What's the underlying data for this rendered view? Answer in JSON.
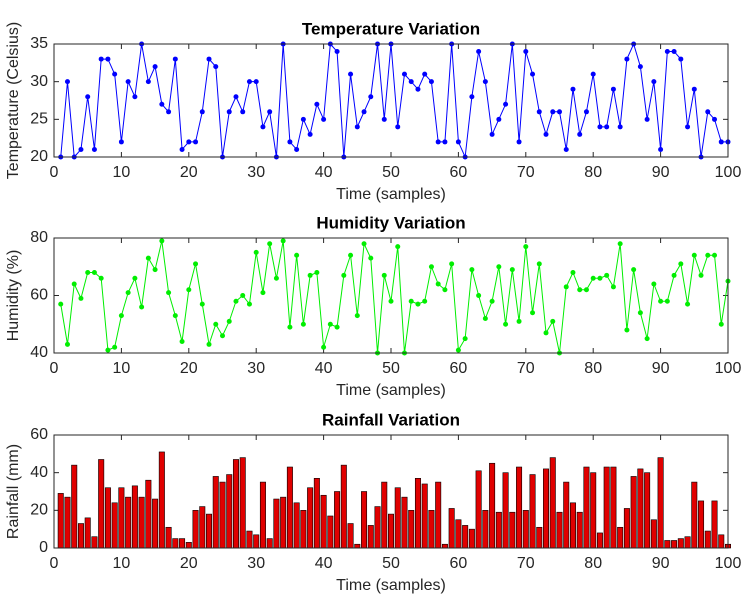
{
  "chart_data": [
    {
      "type": "line",
      "title": "Temperature Variation",
      "xlabel": "Time (samples)",
      "ylabel": "Temperature (Celsius)",
      "color": "#0000ff",
      "x": [
        1,
        2,
        3,
        4,
        5,
        6,
        7,
        8,
        9,
        10,
        11,
        12,
        13,
        14,
        15,
        16,
        17,
        18,
        19,
        20,
        21,
        22,
        23,
        24,
        25,
        26,
        27,
        28,
        29,
        30,
        31,
        32,
        33,
        34,
        35,
        36,
        37,
        38,
        39,
        40,
        41,
        42,
        43,
        44,
        45,
        46,
        47,
        48,
        49,
        50,
        51,
        52,
        53,
        54,
        55,
        56,
        57,
        58,
        59,
        60,
        61,
        62,
        63,
        64,
        65,
        66,
        67,
        68,
        69,
        70,
        71,
        72,
        73,
        74,
        75,
        76,
        77,
        78,
        79,
        80,
        81,
        82,
        83,
        84,
        85,
        86,
        87,
        88,
        89,
        90,
        91,
        92,
        93,
        94,
        95,
        96,
        97,
        98,
        99,
        100
      ],
      "values": [
        20,
        30,
        20,
        21,
        28,
        21,
        33,
        33,
        31,
        22,
        30,
        28,
        35,
        30,
        32,
        27,
        26,
        33,
        21,
        22,
        22,
        26,
        33,
        32,
        20,
        26,
        28,
        26,
        30,
        30,
        24,
        26,
        20,
        35,
        22,
        21,
        25,
        23,
        27,
        25,
        35,
        34,
        20,
        31,
        24,
        26,
        28,
        35,
        25,
        35,
        24,
        31,
        30,
        29,
        31,
        30,
        22,
        22,
        35,
        22,
        20,
        28,
        34,
        30,
        23,
        25,
        27,
        35,
        22,
        34,
        31,
        26,
        23,
        26,
        26,
        21,
        29,
        23,
        26,
        31,
        24,
        24,
        29,
        24,
        33,
        35,
        32,
        25,
        30,
        21,
        34,
        34,
        33,
        24,
        29,
        20,
        26,
        25,
        22,
        22
      ],
      "xlim": [
        0,
        100
      ],
      "xticks": [
        0,
        10,
        20,
        30,
        40,
        50,
        60,
        70,
        80,
        90,
        100
      ],
      "ylim": [
        20,
        35
      ],
      "yticks": [
        20,
        25,
        30,
        35
      ]
    },
    {
      "type": "line",
      "title": "Humidity Variation",
      "xlabel": "Time (samples)",
      "ylabel": "Humidity (%)",
      "color": "#00ee00",
      "x": [
        1,
        2,
        3,
        4,
        5,
        6,
        7,
        8,
        9,
        10,
        11,
        12,
        13,
        14,
        15,
        16,
        17,
        18,
        19,
        20,
        21,
        22,
        23,
        24,
        25,
        26,
        27,
        28,
        29,
        30,
        31,
        32,
        33,
        34,
        35,
        36,
        37,
        38,
        39,
        40,
        41,
        42,
        43,
        44,
        45,
        46,
        47,
        48,
        49,
        50,
        51,
        52,
        53,
        54,
        55,
        56,
        57,
        58,
        59,
        60,
        61,
        62,
        63,
        64,
        65,
        66,
        67,
        68,
        69,
        70,
        71,
        72,
        73,
        74,
        75,
        76,
        77,
        78,
        79,
        80,
        81,
        82,
        83,
        84,
        85,
        86,
        87,
        88,
        89,
        90,
        91,
        92,
        93,
        94,
        95,
        96,
        97,
        98,
        99,
        100
      ],
      "values": [
        57,
        43,
        64,
        59,
        68,
        68,
        66,
        41,
        42,
        53,
        61,
        66,
        56,
        73,
        69,
        79,
        61,
        53,
        44,
        62,
        71,
        57,
        43,
        50,
        46,
        51,
        58,
        60,
        57,
        75,
        61,
        78,
        66,
        79,
        49,
        74,
        50,
        67,
        68,
        42,
        50,
        49,
        67,
        74,
        53,
        78,
        73,
        40,
        67,
        58,
        77,
        40,
        58,
        57,
        58,
        70,
        64,
        62,
        71,
        41,
        45,
        69,
        60,
        52,
        58,
        70,
        50,
        69,
        51,
        77,
        54,
        71,
        47,
        51,
        40,
        63,
        68,
        62,
        62,
        66,
        66,
        67,
        63,
        78,
        48,
        69,
        54,
        45,
        64,
        58,
        58,
        67,
        71,
        57,
        74,
        67,
        74,
        74,
        50,
        65
      ],
      "xlim": [
        0,
        100
      ],
      "xticks": [
        0,
        10,
        20,
        30,
        40,
        50,
        60,
        70,
        80,
        90,
        100
      ],
      "ylim": [
        40,
        80
      ],
      "yticks": [
        40,
        60,
        80
      ]
    },
    {
      "type": "bar",
      "title": "Rainfall Variation",
      "xlabel": "Time (samples)",
      "ylabel": "Rainfall (mm)",
      "color": "#e00000",
      "x": [
        1,
        2,
        3,
        4,
        5,
        6,
        7,
        8,
        9,
        10,
        11,
        12,
        13,
        14,
        15,
        16,
        17,
        18,
        19,
        20,
        21,
        22,
        23,
        24,
        25,
        26,
        27,
        28,
        29,
        30,
        31,
        32,
        33,
        34,
        35,
        36,
        37,
        38,
        39,
        40,
        41,
        42,
        43,
        44,
        45,
        46,
        47,
        48,
        49,
        50,
        51,
        52,
        53,
        54,
        55,
        56,
        57,
        58,
        59,
        60,
        61,
        62,
        63,
        64,
        65,
        66,
        67,
        68,
        69,
        70,
        71,
        72,
        73,
        74,
        75,
        76,
        77,
        78,
        79,
        80,
        81,
        82,
        83,
        84,
        85,
        86,
        87,
        88,
        89,
        90,
        91,
        92,
        93,
        94,
        95,
        96,
        97,
        98,
        99,
        100
      ],
      "values": [
        29,
        27,
        44,
        13,
        16,
        6,
        47,
        32,
        24,
        32,
        27,
        33,
        27,
        36,
        26,
        51,
        11,
        5,
        5,
        3,
        20,
        22,
        18,
        38,
        35,
        39,
        47,
        48,
        9,
        7,
        35,
        5,
        26,
        27,
        43,
        24,
        20,
        32,
        37,
        28,
        17,
        30,
        44,
        13,
        2,
        30,
        12,
        22,
        35,
        18,
        32,
        27,
        20,
        37,
        34,
        20,
        35,
        2,
        21,
        15,
        12,
        10,
        41,
        20,
        45,
        19,
        40,
        19,
        43,
        20,
        39,
        11,
        42,
        48,
        19,
        35,
        24,
        19,
        43,
        40,
        8,
        43,
        43,
        11,
        21,
        38,
        42,
        40,
        15,
        48,
        4,
        4,
        5,
        6,
        35,
        25,
        9,
        25,
        7,
        2
      ],
      "xlim": [
        0,
        100
      ],
      "xticks": [
        0,
        10,
        20,
        30,
        40,
        50,
        60,
        70,
        80,
        90,
        100
      ],
      "ylim": [
        0,
        60
      ],
      "yticks": [
        0,
        20,
        40,
        60
      ]
    }
  ]
}
